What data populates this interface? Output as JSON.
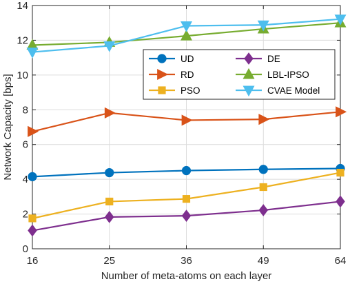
{
  "chart_data": {
    "type": "line",
    "title": "",
    "xlabel": "Number of meta-atoms on each layer",
    "ylabel": "Network Capacity [bps]",
    "x_ticks": [
      "16",
      "25",
      "36",
      "49",
      "64"
    ],
    "y_ticks": [
      "0",
      "2",
      "4",
      "6",
      "8",
      "10",
      "12",
      "14"
    ],
    "ylim": [
      0,
      14
    ],
    "grid": true,
    "legend_placement": "upper-right (two columns)",
    "series": [
      {
        "name": "UD",
        "values": [
          4.15,
          4.38,
          4.5,
          4.57,
          4.62
        ],
        "color": "#0072BD",
        "marker": "circle"
      },
      {
        "name": "RD",
        "values": [
          6.75,
          7.82,
          7.4,
          7.45,
          7.88
        ],
        "color": "#D95319",
        "marker": "triangle-right"
      },
      {
        "name": "PSO",
        "values": [
          1.75,
          2.72,
          2.87,
          3.55,
          4.38
        ],
        "color": "#EDB120",
        "marker": "square"
      },
      {
        "name": "DE",
        "values": [
          1.05,
          1.83,
          1.9,
          2.22,
          2.72
        ],
        "color": "#7E2F8E",
        "marker": "diamond"
      },
      {
        "name": "LBL-IPSO",
        "values": [
          11.72,
          11.88,
          12.25,
          12.65,
          13.0
        ],
        "color": "#77AC30",
        "marker": "triangle-up"
      },
      {
        "name": "CVAE Model",
        "values": [
          11.32,
          11.68,
          12.83,
          12.88,
          13.22
        ],
        "color": "#4DBEEE",
        "marker": "triangle-down"
      }
    ]
  }
}
